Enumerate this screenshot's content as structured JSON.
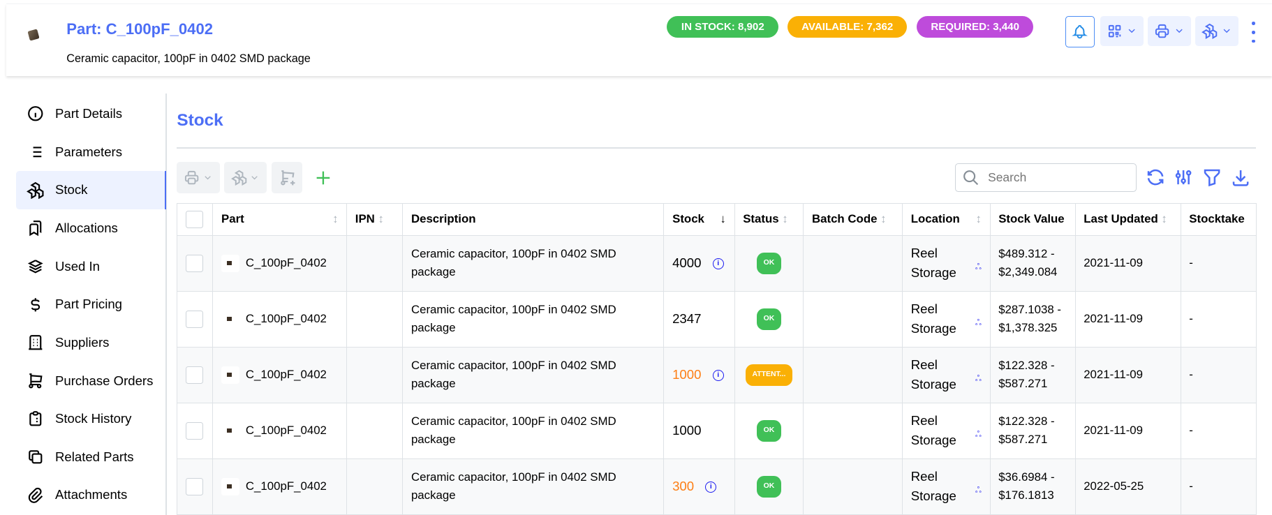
{
  "header": {
    "title": "Part: C_100pF_0402",
    "subtitle": "Ceramic capacitor, 100pF in 0402 SMD package",
    "badges": [
      {
        "label": "IN STOCK: 8,902",
        "color": "#40c057"
      },
      {
        "label": "AVAILABLE: 7,362",
        "color": "#fab005"
      },
      {
        "label": "REQUIRED: 3,440",
        "color": "#be4bdb"
      }
    ],
    "actions": [
      "bell-icon",
      "qr-code-icon",
      "printer-icon",
      "stock-icon",
      "dots-vertical-icon"
    ]
  },
  "sidebar": {
    "items": [
      {
        "label": "Part Details",
        "icon": "info-circle-icon"
      },
      {
        "label": "Parameters",
        "icon": "list-icon"
      },
      {
        "label": "Stock",
        "icon": "packages-icon",
        "active": true
      },
      {
        "label": "Allocations",
        "icon": "bookmarks-icon"
      },
      {
        "label": "Used In",
        "icon": "stack-icon"
      },
      {
        "label": "Part Pricing",
        "icon": "dollar-icon"
      },
      {
        "label": "Suppliers",
        "icon": "building-icon"
      },
      {
        "label": "Purchase Orders",
        "icon": "shopping-cart-icon"
      },
      {
        "label": "Stock History",
        "icon": "clipboard-list-icon"
      },
      {
        "label": "Related Parts",
        "icon": "copy-icon"
      },
      {
        "label": "Attachments",
        "icon": "paperclip-icon"
      }
    ]
  },
  "panel": {
    "title": "Stock",
    "search_placeholder": "Search"
  },
  "table": {
    "columns": [
      "Part",
      "IPN",
      "Description",
      "Stock",
      "Status",
      "Batch Code",
      "Location",
      "Stock Value",
      "Last Updated",
      "Stocktake"
    ],
    "rows": [
      {
        "part": "C_100pF_0402",
        "ipn": "",
        "description": "Ceramic capacitor, 100pF in 0402 SMD package",
        "stock": "4000",
        "stock_color": "#000000",
        "info": true,
        "status": "OK",
        "status_color": "#40c057",
        "batch": "",
        "location": "Reel Storage",
        "value": "$489.312 - $2,349.084",
        "updated": "2021-11-09",
        "stocktake": "-"
      },
      {
        "part": "C_100pF_0402",
        "ipn": "",
        "description": "Ceramic capacitor, 100pF in 0402 SMD package",
        "stock": "2347",
        "stock_color": "#000000",
        "info": false,
        "status": "OK",
        "status_color": "#40c057",
        "batch": "",
        "location": "Reel Storage",
        "value": "$287.1038 - $1,378.325",
        "updated": "2021-11-09",
        "stocktake": "-"
      },
      {
        "part": "C_100pF_0402",
        "ipn": "",
        "description": "Ceramic capacitor, 100pF in 0402 SMD package",
        "stock": "1000",
        "stock_color": "#fd7e14",
        "info": true,
        "status": "ATTENT...",
        "status_color": "#fab005",
        "batch": "",
        "location": "Reel Storage",
        "value": "$122.328 - $587.271",
        "updated": "2021-11-09",
        "stocktake": "-"
      },
      {
        "part": "C_100pF_0402",
        "ipn": "",
        "description": "Ceramic capacitor, 100pF in 0402 SMD package",
        "stock": "1000",
        "stock_color": "#000000",
        "info": false,
        "status": "OK",
        "status_color": "#40c057",
        "batch": "",
        "location": "Reel Storage",
        "value": "$122.328 - $587.271",
        "updated": "2021-11-09",
        "stocktake": "-"
      },
      {
        "part": "C_100pF_0402",
        "ipn": "",
        "description": "Ceramic capacitor, 100pF in 0402 SMD package",
        "stock": "300",
        "stock_color": "#fd7e14",
        "info": true,
        "status": "OK",
        "status_color": "#40c057",
        "batch": "",
        "location": "Reel Storage",
        "value": "$36.6984 - $176.1813",
        "updated": "2022-05-25",
        "stocktake": "-"
      }
    ]
  },
  "colors": {
    "accent": "#4c6ef5",
    "active_bg": "#edf2ff"
  }
}
